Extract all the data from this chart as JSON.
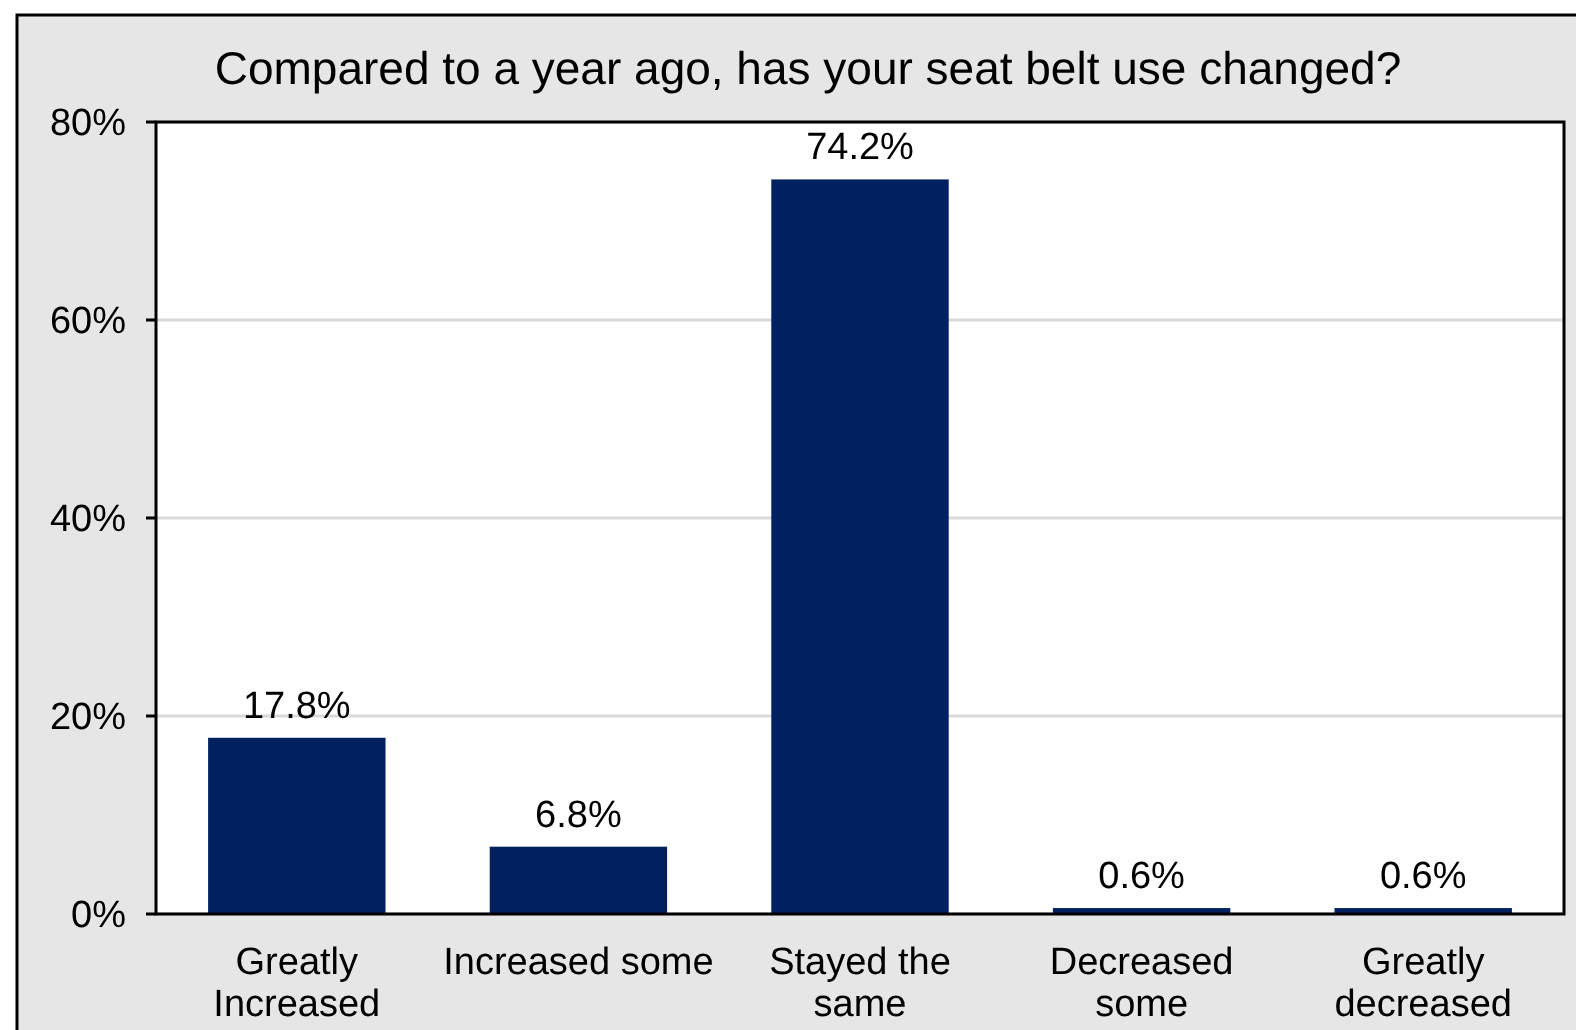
{
  "chart_data": {
    "type": "bar",
    "title": "Compared to a year ago, has your seat belt use changed?",
    "categories": [
      "Greatly Increased",
      "Increased some",
      "Stayed the same",
      "Decreased some",
      "Greatly decreased"
    ],
    "values": [
      17.8,
      6.8,
      74.2,
      0.6,
      0.6
    ],
    "color": "#002060",
    "value_labels": [
      "17.8%",
      "6.8%",
      "74.2%",
      "0.6%",
      "0.6%"
    ],
    "ylim": [
      0,
      80
    ],
    "yticks": [
      {
        "value": 0,
        "label": "0%"
      },
      {
        "value": 20,
        "label": "20%"
      },
      {
        "value": 40,
        "label": "40%"
      },
      {
        "value": 60,
        "label": "60%"
      },
      {
        "value": 80,
        "label": "80%"
      }
    ],
    "grid": "y"
  }
}
